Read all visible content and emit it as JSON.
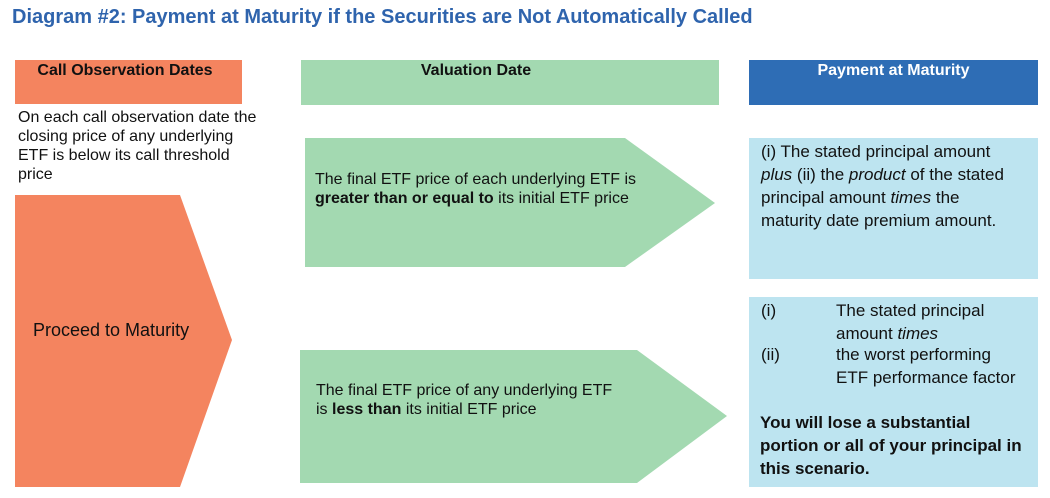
{
  "title": "Diagram #2: Payment at Maturity if the Securities are Not Automatically Called",
  "columns": [
    {
      "header": "Call Observation Dates"
    },
    {
      "header": "Valuation Date"
    },
    {
      "header": "Payment at Maturity"
    }
  ],
  "call_observation": {
    "description": "On each call observation date the closing price of any underlying ETF is below its call threshold price",
    "action": "Proceed to Maturity"
  },
  "scenarios": [
    {
      "condition": [
        "The final ETF price of each underlying ETF is",
        "greater than or equal to",
        "its initial ETF price"
      ],
      "payment": [
        "(i) The stated principal amount",
        "plus",
        "(ii) the",
        "product",
        "of the stated principal amount",
        "times",
        "the maturity date premium amount."
      ]
    },
    {
      "condition": [
        "The final ETF price of any underlying ETF is",
        "less than",
        "its initial ETF price"
      ],
      "payment": {
        "items": [
          {
            "marker": "(i)",
            "text": [
              "The stated principal amount",
              "times"
            ]
          },
          {
            "marker": "(ii)",
            "text": "the worst performing ETF performance factor"
          }
        ],
        "warning": "You will lose a substantial portion or all of your principal in this scenario."
      }
    }
  ]
}
